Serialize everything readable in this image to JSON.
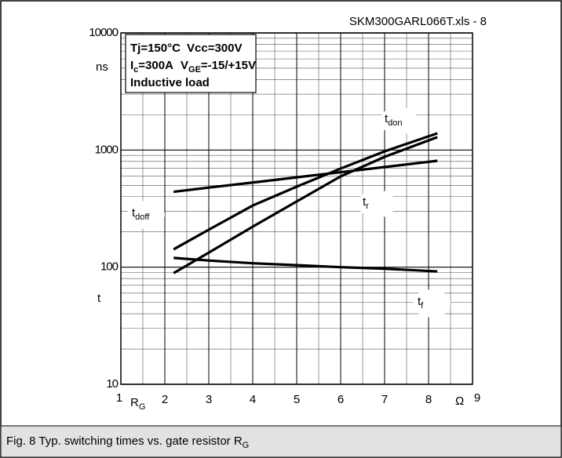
{
  "chart_data": {
    "type": "line",
    "file_label": "SKM300GARL066T.xls - 8",
    "conditions": [
      [
        {
          "text": "Tj=150°C"
        },
        {
          "text": "Vcc=300V"
        }
      ],
      [
        {
          "text": "I",
          "sub": "c"
        },
        {
          "text": "=300A"
        },
        {
          "text": "V",
          "sub": "GE"
        },
        {
          "text": "=-15/+15V"
        }
      ],
      [
        {
          "text": "Inductive load"
        }
      ]
    ],
    "y_unit": "ns",
    "y_label": "t",
    "x_label": {
      "text": "R",
      "sub": "G"
    },
    "x_unit": "Ω",
    "caption": {
      "text": "Fig. 8 Typ. switching times vs. gate resistor R",
      "sub": "G"
    },
    "x": [
      2.2,
      3,
      4,
      5,
      6,
      7,
      8.2
    ],
    "series": [
      {
        "name": {
          "text": "t",
          "sub": "don"
        },
        "color": "#000000",
        "values": [
          142,
          209,
          336,
          487,
          695,
          975,
          1390
        ]
      },
      {
        "name": {
          "text": "t",
          "sub": "r"
        },
        "color": "#000000",
        "values": [
          89,
          133,
          222,
          364,
          596,
          875,
          1290
        ]
      },
      {
        "name": {
          "text": "t",
          "sub": "doff"
        },
        "color": "#000000",
        "values": [
          440,
          478,
          528,
          585,
          647,
          716,
          810
        ]
      },
      {
        "name": {
          "text": "t",
          "sub": "f"
        },
        "color": "#000000",
        "values": [
          120,
          114,
          108,
          104,
          100,
          97,
          92
        ]
      }
    ],
    "xlim": [
      1,
      9
    ],
    "xticks": [
      1,
      2,
      3,
      4,
      5,
      6,
      7,
      8,
      9
    ],
    "xminor": [
      1.5,
      2.5,
      3.5,
      4.5,
      5.5,
      6.5,
      7.5,
      8.5
    ],
    "ylim": [
      10,
      10000
    ],
    "log_y": true,
    "yticks": [
      10,
      100,
      1000,
      10000
    ],
    "yminor": [
      20,
      30,
      40,
      50,
      60,
      70,
      80,
      90,
      200,
      300,
      400,
      500,
      600,
      700,
      800,
      900,
      2000,
      3000,
      4000,
      5000,
      6000,
      7000,
      8000,
      9000
    ],
    "grid": true
  }
}
